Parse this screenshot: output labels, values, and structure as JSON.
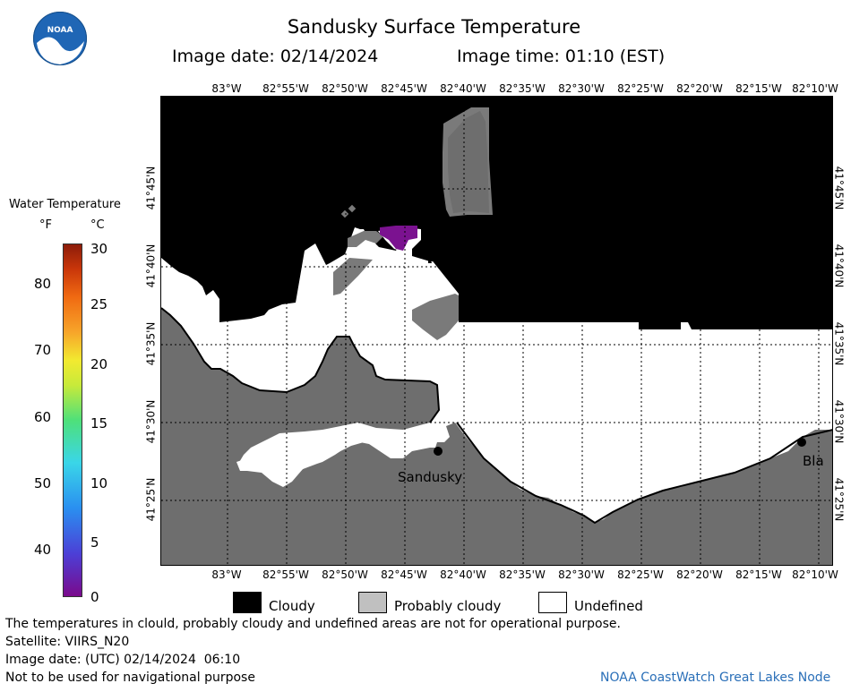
{
  "header": {
    "title": "Sandusky Surface Temperature",
    "image_date": "Image date: 02/14/2024",
    "image_time": "Image time: 01:10 (EST)"
  },
  "logo": {
    "text": "NOAA"
  },
  "longitude_labels": [
    "83°W",
    "82°55'W",
    "82°50'W",
    "82°45'W",
    "82°40'W",
    "82°35'W",
    "82°30'W",
    "82°25'W",
    "82°20'W",
    "82°15'W",
    "82°10'W"
  ],
  "latitude_labels": [
    "41°45'N",
    "41°40'N",
    "41°35'N",
    "41°30'N",
    "41°25'N"
  ],
  "place_labels": {
    "sandusky": "Sandusky",
    "bay": "Bla"
  },
  "colorbar": {
    "title": "Water Temperature",
    "unit_f": "°F",
    "unit_c": "°C",
    "f_ticks": [
      "80",
      "70",
      "60",
      "50",
      "40"
    ],
    "c_ticks": [
      "30",
      "25",
      "20",
      "15",
      "10",
      "5",
      "0"
    ],
    "gradient": [
      "#7a0a8c",
      "#4c3fd6",
      "#2a8ff0",
      "#3ad6e8",
      "#4ee07a",
      "#c8ea3a",
      "#f2ea30",
      "#f7a52a",
      "#f06a12",
      "#c9360a",
      "#8c1c0a"
    ]
  },
  "map_legend": [
    {
      "label": "Cloudy",
      "color": "#000000"
    },
    {
      "label": "Probably cloudy",
      "color": "#c0c0c0"
    },
    {
      "label": "Undefined",
      "color": "#ffffff"
    }
  ],
  "colors": {
    "land": "#6e6e6e",
    "cloud": "#000000",
    "prob_cloud": "#7a7a7a",
    "water_warm_spot": "#7b1290"
  },
  "footer": {
    "note": "The temperatures in clould, probably cloudy and undefined areas are not for operational purpose.",
    "satellite": "Satellite: VIIRS_N20",
    "utc_date": "Image date: (UTC) 02/14/2024  06:10",
    "nav_warning": "Not to be used for navigational purpose",
    "credit": "NOAA CoastWatch Great Lakes Node"
  }
}
